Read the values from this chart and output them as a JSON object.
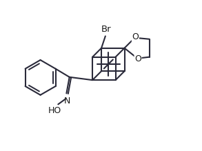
{
  "bg_color": "#ffffff",
  "line_color": "#2a2a3a",
  "text_color": "#1a1a1a",
  "bond_lw": 1.5,
  "label_fontsize": 9,
  "fig_width": 2.93,
  "fig_height": 2.19,
  "dpi": 100,
  "xlim": [
    0,
    10
  ],
  "ylim": [
    0,
    7.5
  ]
}
